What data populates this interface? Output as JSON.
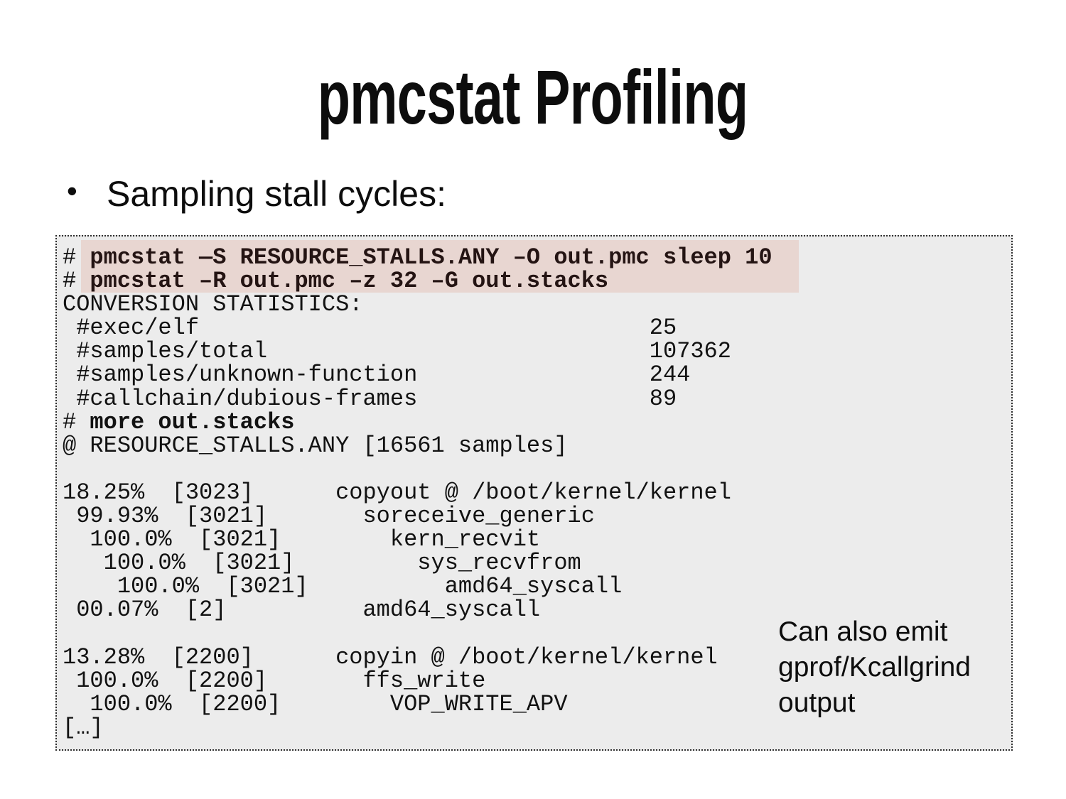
{
  "slide": {
    "title": "pmcstat Profiling",
    "bullet_marker": "•",
    "bullet": "Sampling stall cycles:"
  },
  "terminal": {
    "lines": [
      {
        "text": "# pmcstat —S RESOURCE_STALLS.ANY –O out.pmc sleep 10",
        "style": "command"
      },
      {
        "text": "# pmcstat –R out.pmc –z 32 –G out.stacks",
        "style": "command"
      },
      {
        "text": "CONVERSION STATISTICS:",
        "style": "plain"
      },
      {
        "text": " #exec/elf                                 25",
        "style": "plain"
      },
      {
        "text": " #samples/total                            107362",
        "style": "plain"
      },
      {
        "text": " #samples/unknown-function                 244",
        "style": "plain"
      },
      {
        "text": " #callchain/dubious-frames                 89",
        "style": "plain"
      },
      {
        "text": "# more out.stacks",
        "style": "bold"
      },
      {
        "text": "@ RESOURCE_STALLS.ANY [16561 samples]",
        "style": "plain"
      },
      {
        "text": "",
        "style": "plain"
      },
      {
        "text": "18.25%  [3023]      copyout @ /boot/kernel/kernel",
        "style": "plain"
      },
      {
        "text": " 99.93%  [3021]       soreceive_generic",
        "style": "plain"
      },
      {
        "text": "  100.0%  [3021]        kern_recvit",
        "style": "plain"
      },
      {
        "text": "   100.0%  [3021]         sys_recvfrom",
        "style": "plain"
      },
      {
        "text": "    100.0%  [3021]          amd64_syscall",
        "style": "plain"
      },
      {
        "text": " 00.07%  [2]          amd64_syscall",
        "style": "plain"
      },
      {
        "text": "",
        "style": "plain"
      },
      {
        "text": "13.28%  [2200]      copyin @ /boot/kernel/kernel",
        "style": "plain"
      },
      {
        "text": " 100.0%  [2200]       ffs_write",
        "style": "plain"
      },
      {
        "text": "  100.0%  [2200]        VOP_WRITE_APV",
        "style": "plain"
      },
      {
        "text": "[…]",
        "style": "plain"
      }
    ]
  },
  "note": {
    "lines": [
      "Can also emit",
      "gprof/Kcallgrind",
      "output"
    ]
  },
  "colors": {
    "slide_background": "#ffffff",
    "terminal_background": "#ececec",
    "terminal_border": "#2e2e2e",
    "command_highlight": "#e8d6d1",
    "command_text": "#241413",
    "body_text": "#0d0d0d"
  }
}
